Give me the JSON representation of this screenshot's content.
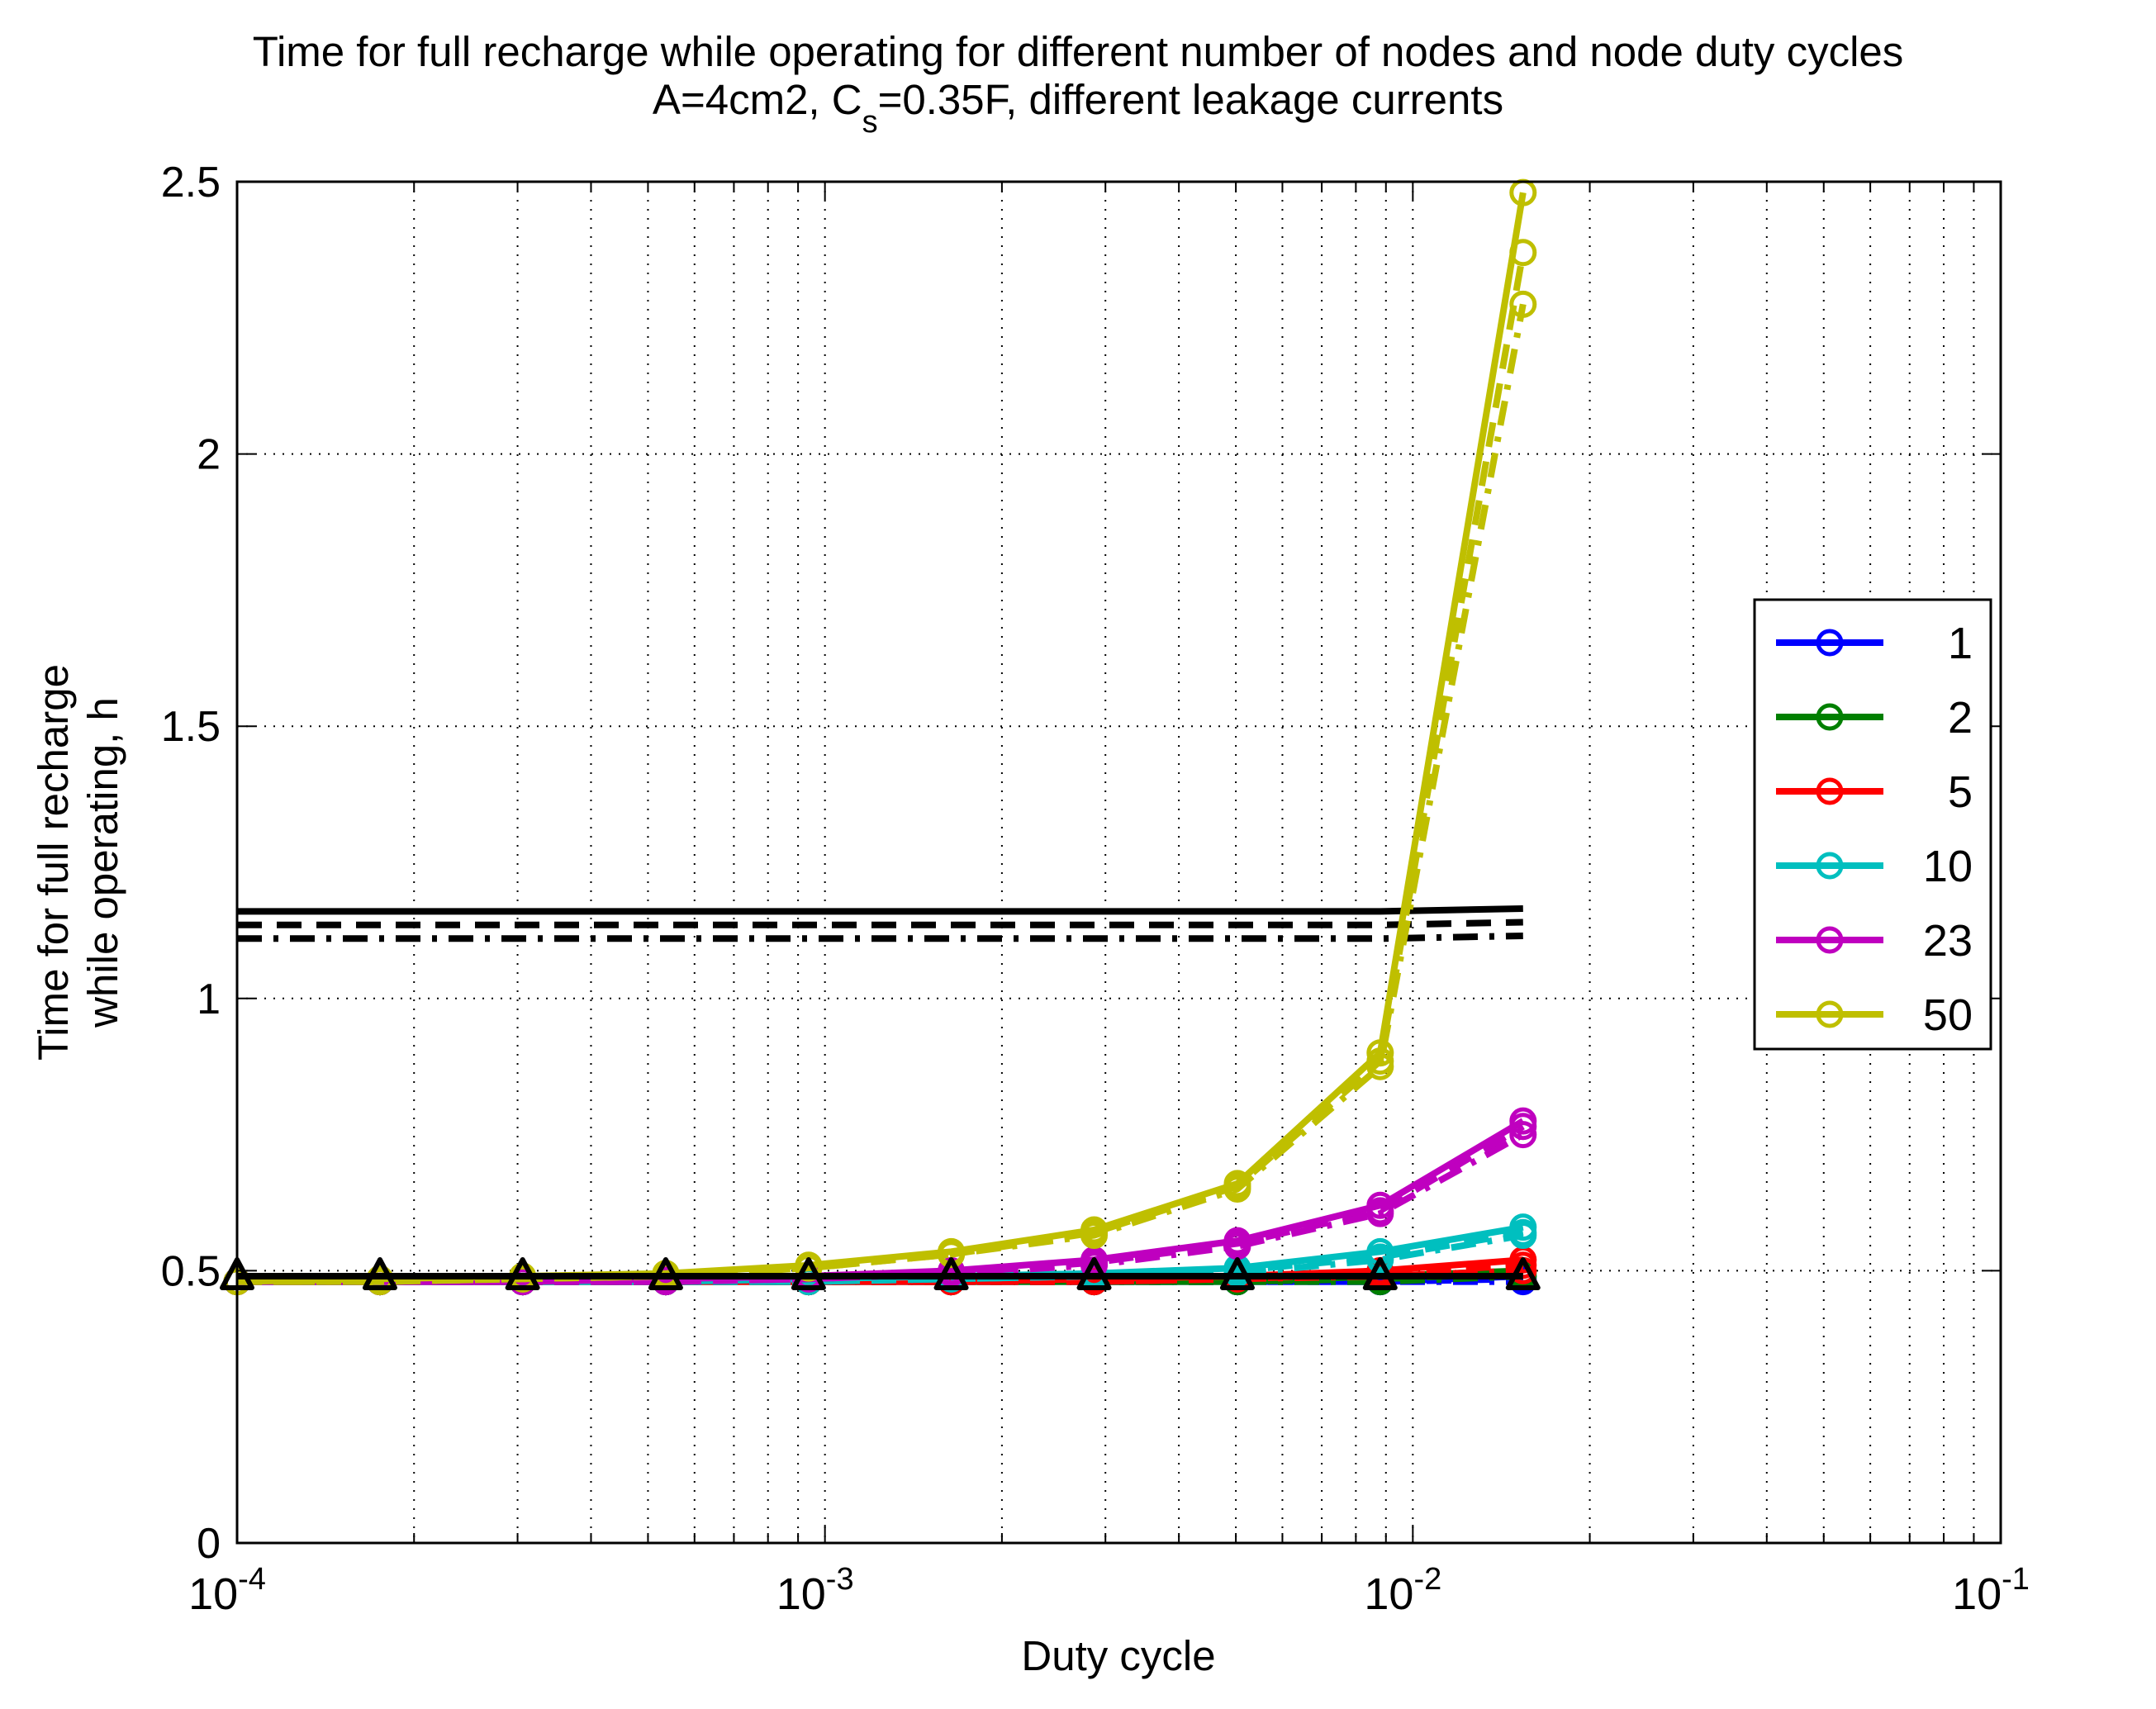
{
  "chart_data": {
    "type": "line",
    "title": "Time for full recharge while operating for different number of nodes and node duty cycles",
    "subtitle": {
      "prefix": "A=4cm2, C",
      "sub": "s",
      "suffix": "=0.35F, different leakage currents"
    },
    "xlabel": "Duty cycle",
    "ylabel": [
      "Time for full recharge",
      "while operating, h"
    ],
    "xscale": "log",
    "xlim": [
      0.0001,
      0.1
    ],
    "ylim": [
      0,
      2.5
    ],
    "grid": true,
    "x_ticks": [
      {
        "value": 0.0001,
        "base": "10",
        "exp": "-4"
      },
      {
        "value": 0.001,
        "base": "10",
        "exp": "-3"
      },
      {
        "value": 0.01,
        "base": "10",
        "exp": "-2"
      },
      {
        "value": 0.1,
        "base": "10",
        "exp": "-1"
      }
    ],
    "y_ticks": [
      {
        "value": 0,
        "label": "0"
      },
      {
        "value": 0.5,
        "label": "0.5"
      },
      {
        "value": 1,
        "label": "1"
      },
      {
        "value": 1.5,
        "label": "1.5"
      },
      {
        "value": 2,
        "label": "2"
      },
      {
        "value": 2.5,
        "label": "2.5"
      }
    ],
    "x": [
      0.0001,
      0.000175,
      0.000306,
      0.000536,
      0.000938,
      0.00164,
      0.00287,
      0.00503,
      0.0088,
      0.0154
    ],
    "legend": {
      "position": "right",
      "title": ""
    },
    "series": [
      {
        "name": "1",
        "color": "#0000ff",
        "in_legend": true,
        "variants": [
          [
            0.48,
            0.48,
            0.48,
            0.48,
            0.48,
            0.48,
            0.48,
            0.48,
            0.48,
            0.49
          ],
          [
            0.48,
            0.48,
            0.48,
            0.48,
            0.48,
            0.48,
            0.48,
            0.48,
            0.48,
            0.485
          ],
          [
            0.48,
            0.48,
            0.48,
            0.48,
            0.48,
            0.48,
            0.48,
            0.48,
            0.48,
            0.48
          ]
        ]
      },
      {
        "name": "2",
        "color": "#007f00",
        "in_legend": true,
        "variants": [
          [
            0.48,
            0.48,
            0.48,
            0.48,
            0.48,
            0.48,
            0.48,
            0.48,
            0.49,
            0.5
          ],
          [
            0.48,
            0.48,
            0.48,
            0.48,
            0.48,
            0.48,
            0.48,
            0.48,
            0.485,
            0.495
          ],
          [
            0.48,
            0.48,
            0.48,
            0.48,
            0.48,
            0.48,
            0.48,
            0.48,
            0.48,
            0.49
          ]
        ]
      },
      {
        "name": "5",
        "color": "#ff0000",
        "in_legend": true,
        "variants": [
          [
            0.48,
            0.48,
            0.48,
            0.48,
            0.48,
            0.48,
            0.485,
            0.49,
            0.5,
            0.52
          ],
          [
            0.48,
            0.48,
            0.48,
            0.48,
            0.48,
            0.48,
            0.48,
            0.485,
            0.495,
            0.51
          ],
          [
            0.48,
            0.48,
            0.48,
            0.48,
            0.48,
            0.48,
            0.48,
            0.485,
            0.49,
            0.5
          ]
        ]
      },
      {
        "name": "10",
        "color": "#00bfbf",
        "in_legend": true,
        "variants": [
          [
            0.48,
            0.48,
            0.48,
            0.48,
            0.485,
            0.49,
            0.495,
            0.505,
            0.535,
            0.58
          ],
          [
            0.48,
            0.48,
            0.48,
            0.48,
            0.48,
            0.485,
            0.49,
            0.5,
            0.525,
            0.57
          ],
          [
            0.48,
            0.48,
            0.48,
            0.48,
            0.48,
            0.485,
            0.49,
            0.495,
            0.52,
            0.565
          ]
        ]
      },
      {
        "name": "23",
        "color": "#bf00bf",
        "in_legend": true,
        "variants": [
          [
            0.48,
            0.48,
            0.48,
            0.485,
            0.49,
            0.5,
            0.52,
            0.555,
            0.62,
            0.775
          ],
          [
            0.48,
            0.48,
            0.48,
            0.48,
            0.485,
            0.495,
            0.515,
            0.55,
            0.61,
            0.765
          ],
          [
            0.48,
            0.48,
            0.48,
            0.48,
            0.485,
            0.495,
            0.51,
            0.545,
            0.605,
            0.75
          ]
        ]
      },
      {
        "name": "50",
        "color": "#bfbf00",
        "in_legend": true,
        "variants": [
          [
            0.48,
            0.485,
            0.49,
            0.495,
            0.51,
            0.535,
            0.575,
            0.66,
            0.9,
            2.48
          ],
          [
            0.48,
            0.48,
            0.485,
            0.49,
            0.505,
            0.53,
            0.57,
            0.655,
            0.885,
            2.37
          ],
          [
            0.48,
            0.48,
            0.485,
            0.49,
            0.505,
            0.53,
            0.565,
            0.65,
            0.875,
            2.275
          ]
        ]
      },
      {
        "name": "reference (solid)",
        "color": "#000000",
        "in_legend": false,
        "style": "solid",
        "values": [
          1.16,
          1.16,
          1.16,
          1.16,
          1.16,
          1.16,
          1.16,
          1.16,
          1.16,
          1.165
        ]
      },
      {
        "name": "reference (dashed)",
        "color": "#000000",
        "in_legend": false,
        "style": "dashed",
        "values": [
          1.135,
          1.135,
          1.135,
          1.135,
          1.135,
          1.135,
          1.135,
          1.135,
          1.135,
          1.14
        ]
      },
      {
        "name": "reference (dash-dot)",
        "color": "#000000",
        "in_legend": false,
        "style": "dashdot",
        "values": [
          1.11,
          1.11,
          1.11,
          1.11,
          1.11,
          1.11,
          1.11,
          1.11,
          1.11,
          1.115
        ]
      },
      {
        "name": "baseline (triangles)",
        "color": "#000000",
        "in_legend": false,
        "marker": "triangle",
        "values": [
          0.49,
          0.49,
          0.49,
          0.49,
          0.49,
          0.49,
          0.49,
          0.49,
          0.49,
          0.49
        ]
      }
    ]
  }
}
